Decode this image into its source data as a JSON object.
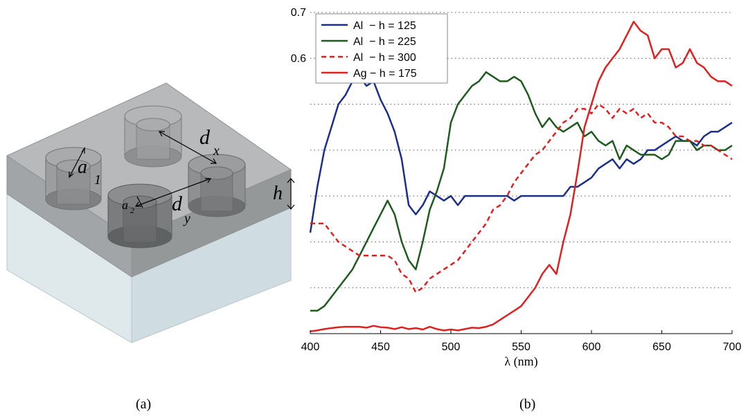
{
  "figure_a": {
    "caption": "(a)",
    "labels": {
      "a1_main": "a",
      "a1_sub": "1",
      "a2_main": "a",
      "a2_sub": "2",
      "dx_main": "d",
      "dx_sub": "x",
      "dy_main": "d",
      "dy_sub": "y",
      "h": "h"
    }
  },
  "figure_b": {
    "caption": "(b)"
  },
  "chart_data": {
    "type": "line",
    "title": "",
    "xlabel": "λ (nm)",
    "ylabel": "",
    "xlim": [
      400,
      700
    ],
    "ylim": [
      0,
      0.7
    ],
    "x_ticks": [
      400,
      450,
      500,
      550,
      600,
      650,
      700
    ],
    "x_tick_labels": [
      "400",
      "450",
      "500",
      "550",
      "600",
      "650",
      "700"
    ],
    "y_tick_labels": [
      {
        "value": 0.6,
        "label": "0.6"
      },
      {
        "value": 0.7,
        "label": "0.7"
      }
    ],
    "y_gridlines": [
      0.1,
      0.2,
      0.3,
      0.4,
      0.5
    ],
    "grid": "horizontal dotted",
    "legend_position": "top-left",
    "series": [
      {
        "name": "Al  − h = 125",
        "color": "#1a2f8a",
        "dash": "solid",
        "x": [
          400,
          405,
          410,
          415,
          420,
          425,
          430,
          435,
          440,
          445,
          450,
          455,
          460,
          465,
          470,
          475,
          480,
          485,
          490,
          495,
          500,
          505,
          510,
          515,
          520,
          525,
          530,
          535,
          540,
          545,
          550,
          555,
          560,
          565,
          570,
          575,
          580,
          585,
          590,
          595,
          600,
          605,
          610,
          615,
          620,
          625,
          630,
          635,
          640,
          645,
          650,
          655,
          660,
          665,
          670,
          675,
          680,
          685,
          690,
          695,
          700
        ],
        "values": [
          0.22,
          0.32,
          0.4,
          0.45,
          0.5,
          0.52,
          0.55,
          0.56,
          0.54,
          0.55,
          0.51,
          0.48,
          0.44,
          0.38,
          0.28,
          0.26,
          0.28,
          0.31,
          0.3,
          0.29,
          0.3,
          0.28,
          0.3,
          0.3,
          0.3,
          0.3,
          0.3,
          0.3,
          0.3,
          0.29,
          0.3,
          0.3,
          0.3,
          0.3,
          0.3,
          0.3,
          0.3,
          0.32,
          0.32,
          0.33,
          0.34,
          0.36,
          0.37,
          0.38,
          0.36,
          0.38,
          0.37,
          0.38,
          0.4,
          0.4,
          0.41,
          0.42,
          0.43,
          0.42,
          0.42,
          0.41,
          0.43,
          0.44,
          0.44,
          0.45,
          0.46
        ]
      },
      {
        "name": "Al  − h = 225",
        "color": "#1e5b1e",
        "dash": "solid",
        "x": [
          400,
          405,
          410,
          415,
          420,
          425,
          430,
          435,
          440,
          445,
          450,
          455,
          460,
          465,
          470,
          475,
          480,
          485,
          490,
          495,
          500,
          505,
          510,
          515,
          520,
          525,
          530,
          535,
          540,
          545,
          550,
          555,
          560,
          565,
          570,
          575,
          580,
          585,
          590,
          595,
          600,
          605,
          610,
          615,
          620,
          625,
          630,
          635,
          640,
          645,
          650,
          655,
          660,
          665,
          670,
          675,
          680,
          685,
          690,
          695,
          700
        ],
        "values": [
          0.05,
          0.05,
          0.06,
          0.08,
          0.1,
          0.12,
          0.14,
          0.17,
          0.2,
          0.23,
          0.26,
          0.29,
          0.26,
          0.2,
          0.16,
          0.14,
          0.2,
          0.27,
          0.31,
          0.36,
          0.46,
          0.5,
          0.52,
          0.54,
          0.55,
          0.57,
          0.56,
          0.55,
          0.55,
          0.56,
          0.55,
          0.52,
          0.48,
          0.45,
          0.47,
          0.45,
          0.44,
          0.45,
          0.46,
          0.43,
          0.44,
          0.42,
          0.41,
          0.42,
          0.38,
          0.41,
          0.4,
          0.39,
          0.39,
          0.39,
          0.38,
          0.39,
          0.42,
          0.42,
          0.42,
          0.4,
          0.41,
          0.41,
          0.4,
          0.4,
          0.41
        ]
      },
      {
        "name": "Al  − h = 300",
        "color": "#e02020",
        "dash": "dashed",
        "x": [
          400,
          405,
          410,
          415,
          420,
          425,
          430,
          435,
          440,
          445,
          450,
          455,
          460,
          465,
          470,
          475,
          480,
          485,
          490,
          495,
          500,
          505,
          510,
          515,
          520,
          525,
          530,
          535,
          540,
          545,
          550,
          555,
          560,
          565,
          570,
          575,
          580,
          585,
          590,
          595,
          600,
          605,
          610,
          615,
          620,
          625,
          630,
          635,
          640,
          645,
          650,
          655,
          660,
          665,
          670,
          675,
          680,
          685,
          690,
          695,
          700
        ],
        "values": [
          0.24,
          0.24,
          0.24,
          0.22,
          0.2,
          0.19,
          0.18,
          0.17,
          0.17,
          0.17,
          0.17,
          0.17,
          0.16,
          0.13,
          0.12,
          0.09,
          0.1,
          0.12,
          0.13,
          0.14,
          0.15,
          0.16,
          0.18,
          0.2,
          0.22,
          0.24,
          0.27,
          0.28,
          0.3,
          0.33,
          0.35,
          0.37,
          0.39,
          0.4,
          0.42,
          0.44,
          0.46,
          0.47,
          0.49,
          0.49,
          0.48,
          0.5,
          0.49,
          0.47,
          0.49,
          0.48,
          0.49,
          0.47,
          0.48,
          0.46,
          0.46,
          0.45,
          0.43,
          0.43,
          0.42,
          0.42,
          0.41,
          0.41,
          0.4,
          0.39,
          0.38
        ]
      },
      {
        "name": "Ag − h = 175",
        "color": "#e02020",
        "dash": "solid",
        "x": [
          400,
          405,
          410,
          415,
          420,
          425,
          430,
          435,
          440,
          445,
          450,
          455,
          460,
          465,
          470,
          475,
          480,
          485,
          490,
          495,
          500,
          505,
          510,
          515,
          520,
          525,
          530,
          535,
          540,
          545,
          550,
          555,
          560,
          565,
          570,
          575,
          580,
          585,
          590,
          595,
          600,
          605,
          610,
          615,
          620,
          625,
          630,
          635,
          640,
          645,
          650,
          655,
          660,
          665,
          670,
          675,
          680,
          685,
          690,
          695,
          700
        ],
        "values": [
          0.005,
          0.007,
          0.01,
          0.012,
          0.014,
          0.015,
          0.015,
          0.015,
          0.013,
          0.017,
          0.014,
          0.013,
          0.01,
          0.014,
          0.01,
          0.012,
          0.009,
          0.015,
          0.01,
          0.007,
          0.009,
          0.007,
          0.01,
          0.013,
          0.012,
          0.015,
          0.02,
          0.03,
          0.04,
          0.05,
          0.06,
          0.08,
          0.1,
          0.13,
          0.15,
          0.13,
          0.2,
          0.26,
          0.35,
          0.45,
          0.5,
          0.55,
          0.58,
          0.6,
          0.62,
          0.65,
          0.68,
          0.66,
          0.65,
          0.6,
          0.62,
          0.62,
          0.58,
          0.59,
          0.62,
          0.59,
          0.58,
          0.56,
          0.55,
          0.55,
          0.54
        ]
      }
    ]
  }
}
